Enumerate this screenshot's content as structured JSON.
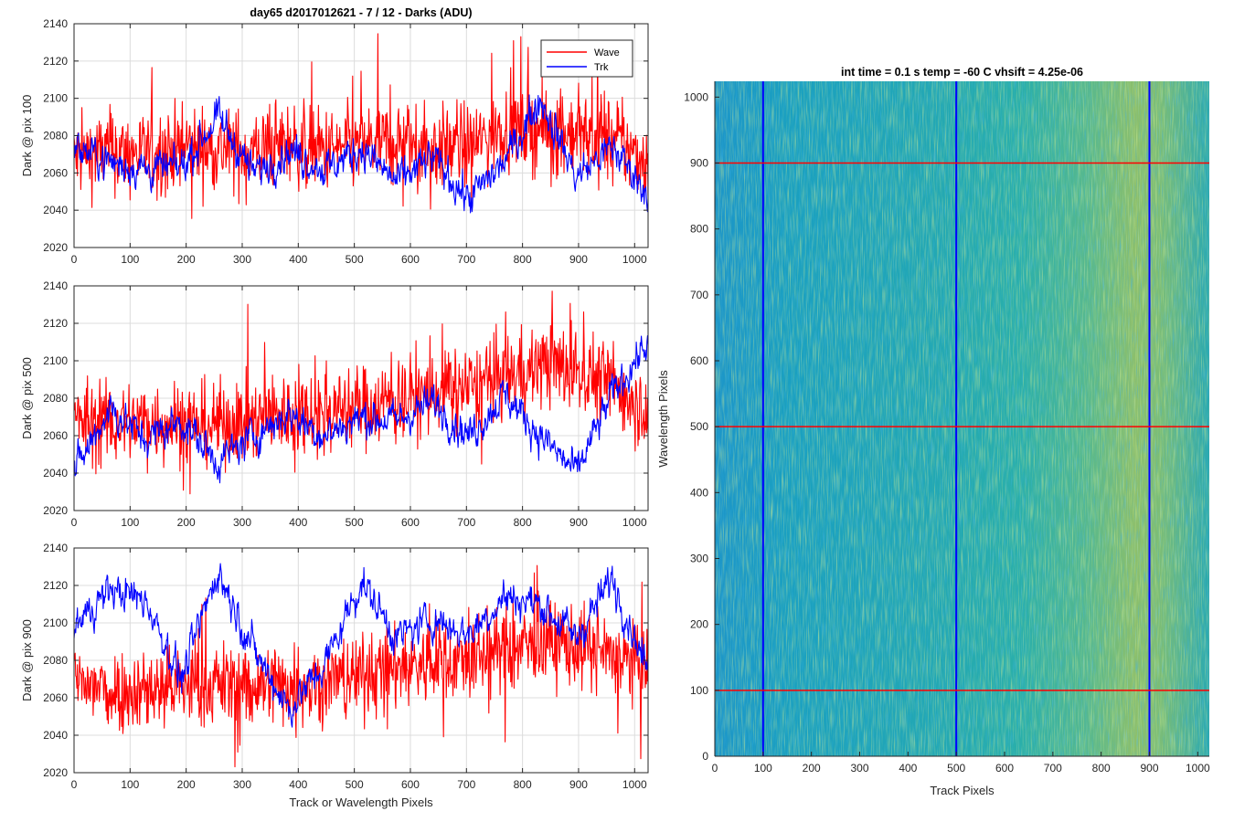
{
  "colors": {
    "wave": "#ff0000",
    "trk": "#0000ff",
    "grid": "#dcdcdc",
    "axis": "#262626"
  },
  "legend": {
    "placement": "top-right",
    "entries": [
      "Wave",
      "Trk"
    ]
  },
  "chart_data": [
    {
      "type": "line",
      "title": "day65 d2017012621 - 7 / 12 - Darks (ADU)",
      "xlabel": "",
      "ylabel": "Dark @ pix 100",
      "xlim": [
        0,
        1024
      ],
      "ylim": [
        2020,
        2140
      ],
      "xticks": [
        "0",
        "100",
        "200",
        "300",
        "400",
        "500",
        "600",
        "700",
        "800",
        "900",
        "1000"
      ],
      "yticks": [
        "2020",
        "2040",
        "2060",
        "2080",
        "2100",
        "2120",
        "2140"
      ],
      "grid": true,
      "series": [
        {
          "name": "Wave",
          "color": "#ff0000",
          "x": [
            0,
            64,
            128,
            192,
            256,
            320,
            384,
            448,
            512,
            576,
            640,
            704,
            768,
            832,
            896,
            960,
            1024
          ],
          "values": [
            2068,
            2072,
            2070,
            2074,
            2073,
            2071,
            2076,
            2072,
            2075,
            2077,
            2073,
            2074,
            2085,
            2083,
            2081,
            2078,
            2066
          ]
        },
        {
          "name": "Trk",
          "color": "#0000ff",
          "x": [
            0,
            64,
            128,
            192,
            256,
            320,
            384,
            448,
            512,
            576,
            640,
            704,
            768,
            832,
            896,
            960,
            1024
          ],
          "values": [
            2074,
            2066,
            2062,
            2063,
            2090,
            2060,
            2072,
            2062,
            2073,
            2055,
            2068,
            2046,
            2066,
            2100,
            2058,
            2074,
            2050
          ]
        }
      ]
    },
    {
      "type": "line",
      "title": "",
      "xlabel": "",
      "ylabel": "Dark @ pix 500",
      "xlim": [
        0,
        1024
      ],
      "ylim": [
        2020,
        2140
      ],
      "xticks": [
        "0",
        "100",
        "200",
        "300",
        "400",
        "500",
        "600",
        "700",
        "800",
        "900",
        "1000"
      ],
      "yticks": [
        "2020",
        "2040",
        "2060",
        "2080",
        "2100",
        "2120",
        "2140"
      ],
      "grid": true,
      "series": [
        {
          "name": "Wave",
          "color": "#ff0000",
          "x": [
            0,
            64,
            128,
            192,
            256,
            320,
            384,
            448,
            512,
            576,
            640,
            704,
            768,
            832,
            896,
            960,
            1024
          ],
          "values": [
            2068,
            2066,
            2068,
            2067,
            2066,
            2069,
            2072,
            2074,
            2075,
            2080,
            2082,
            2085,
            2092,
            2098,
            2096,
            2088,
            2074
          ]
        },
        {
          "name": "Trk",
          "color": "#0000ff",
          "x": [
            0,
            64,
            128,
            192,
            256,
            320,
            384,
            448,
            512,
            576,
            640,
            704,
            768,
            832,
            896,
            960,
            1024
          ],
          "values": [
            2040,
            2075,
            2058,
            2068,
            2046,
            2060,
            2072,
            2060,
            2070,
            2068,
            2078,
            2060,
            2082,
            2060,
            2040,
            2082,
            2110
          ]
        }
      ]
    },
    {
      "type": "line",
      "title": "",
      "xlabel": "Track or Wavelength Pixels",
      "ylabel": "Dark @ pix 900",
      "xlim": [
        0,
        1024
      ],
      "ylim": [
        2020,
        2140
      ],
      "xticks": [
        "0",
        "100",
        "200",
        "300",
        "400",
        "500",
        "600",
        "700",
        "800",
        "900",
        "1000"
      ],
      "yticks": [
        "2020",
        "2040",
        "2060",
        "2080",
        "2100",
        "2120",
        "2140"
      ],
      "grid": true,
      "series": [
        {
          "name": "Wave",
          "color": "#ff0000",
          "x": [
            0,
            64,
            128,
            192,
            256,
            320,
            384,
            448,
            512,
            576,
            640,
            704,
            768,
            832,
            896,
            960,
            1024
          ],
          "values": [
            2068,
            2064,
            2065,
            2066,
            2068,
            2066,
            2067,
            2069,
            2072,
            2076,
            2079,
            2081,
            2085,
            2090,
            2088,
            2082,
            2076
          ]
        },
        {
          "name": "Trk",
          "color": "#0000ff",
          "x": [
            0,
            64,
            128,
            192,
            256,
            320,
            384,
            448,
            512,
            576,
            640,
            704,
            768,
            832,
            896,
            960,
            1024
          ],
          "values": [
            2098,
            2118,
            2112,
            2070,
            2128,
            2086,
            2054,
            2078,
            2122,
            2092,
            2102,
            2094,
            2114,
            2110,
            2092,
            2124,
            2074
          ]
        }
      ]
    },
    {
      "type": "heatmap",
      "title": "int time = 0.1 s   temp = -60 C   vhsift = 4.25e-06",
      "xlabel": "Track Pixels",
      "ylabel": "Wavelength Pixels",
      "xlim": [
        0,
        1024
      ],
      "ylim": [
        0,
        1024
      ],
      "xticks": [
        "0",
        "100",
        "200",
        "300",
        "400",
        "500",
        "600",
        "700",
        "800",
        "900",
        "1000"
      ],
      "yticks": [
        "0",
        "100",
        "200",
        "300",
        "400",
        "500",
        "600",
        "700",
        "800",
        "900",
        "1000"
      ],
      "colormap": "parula",
      "vertical_markers": [
        100,
        500,
        900
      ],
      "horizontal_markers": [
        100,
        500,
        900
      ],
      "marker_colors": {
        "vertical": "#0000ff",
        "horizontal": "#ff0000"
      }
    }
  ]
}
